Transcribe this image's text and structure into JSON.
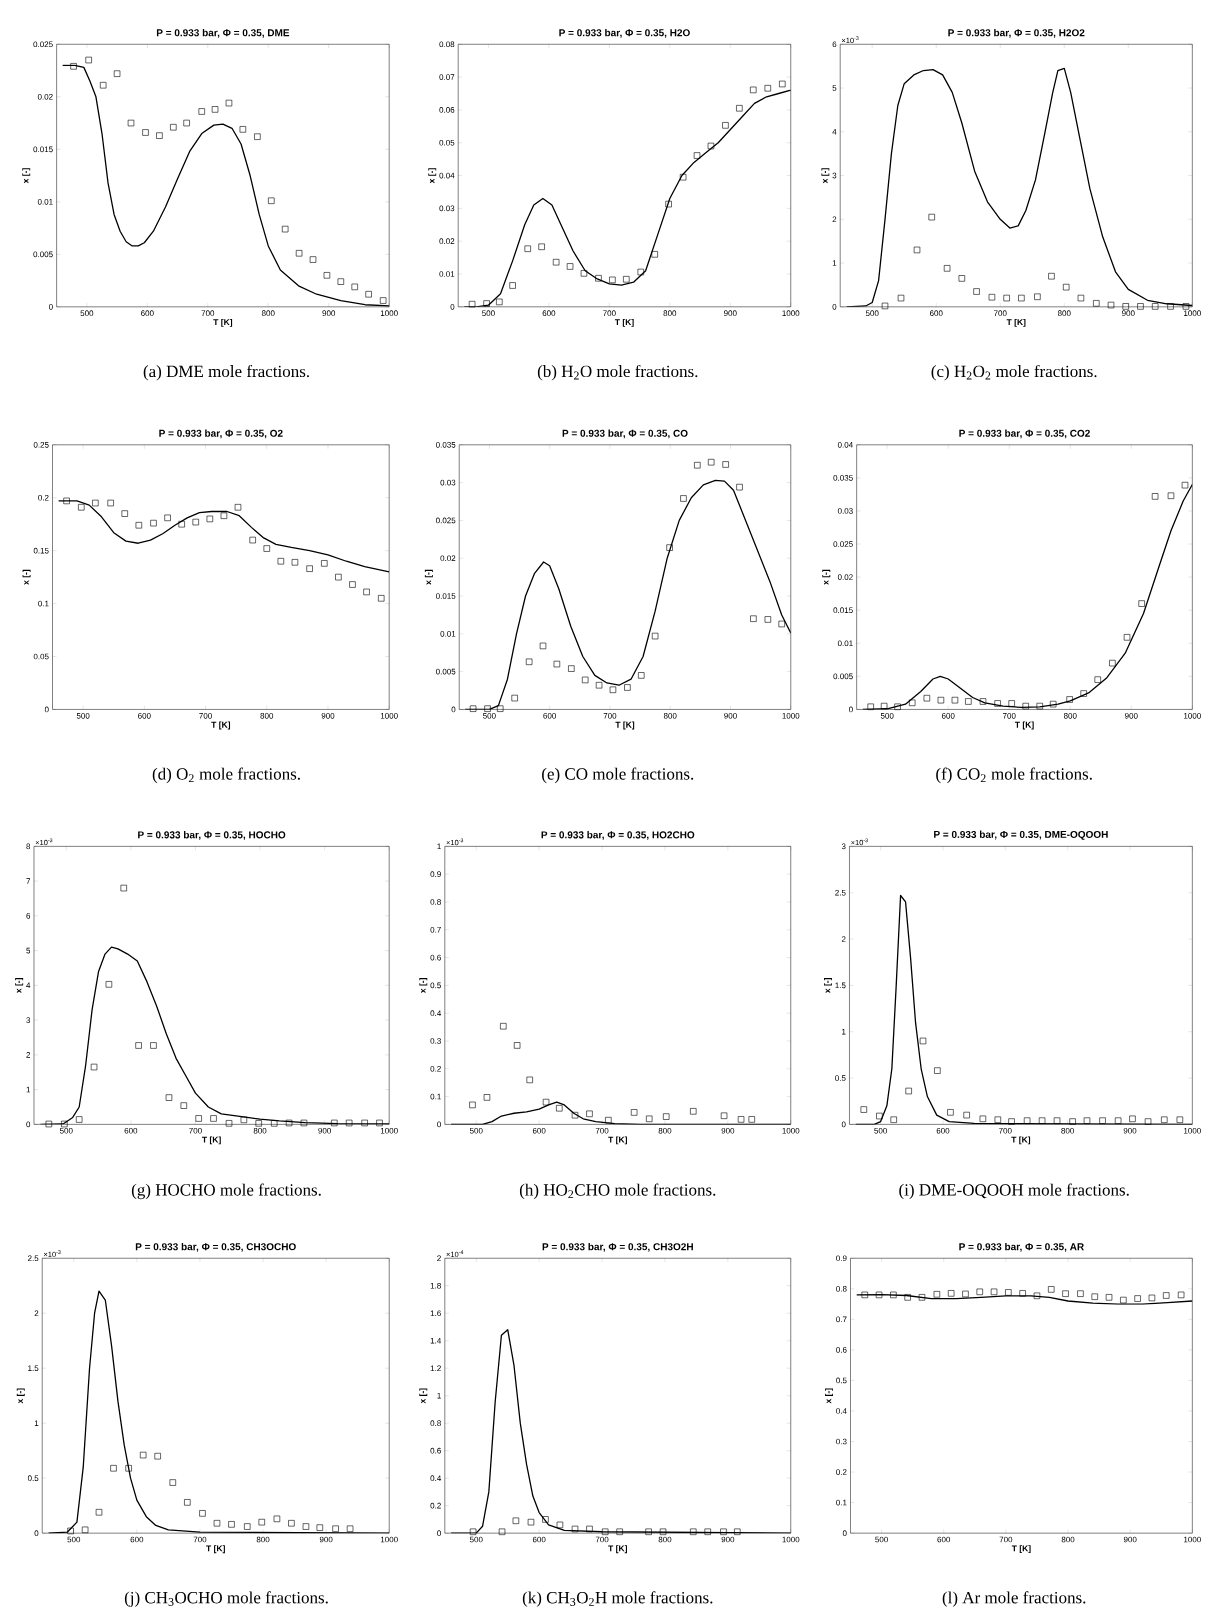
{
  "chart_data": [
    {
      "type": "line",
      "title": "P = 0.933 bar, Φ = 0.35, DME",
      "xlabel": "T [K]",
      "ylabel": "x [-]",
      "xlim": [
        450,
        1000
      ],
      "xticks": [
        500,
        600,
        700,
        800,
        900,
        1000
      ],
      "ylim": [
        0,
        0.025
      ],
      "yticks": [
        0,
        0.005,
        0.01,
        0.015,
        0.02,
        0.025
      ],
      "annotations": [
        "(a) DME mole fractions."
      ],
      "series": [
        {
          "color": "#000000",
          "x": [
            460,
            480,
            495,
            505,
            515,
            525,
            535,
            545,
            555,
            565,
            575,
            585,
            595,
            610,
            630,
            650,
            670,
            690,
            710,
            725,
            740,
            755,
            770,
            785,
            800,
            820,
            850,
            880,
            920,
            960,
            1000
          ],
          "values": [
            0.023,
            0.023,
            0.0228,
            0.0215,
            0.02,
            0.0165,
            0.0118,
            0.0088,
            0.0072,
            0.0062,
            0.0058,
            0.0058,
            0.0061,
            0.0072,
            0.0095,
            0.0122,
            0.0148,
            0.0165,
            0.0173,
            0.0174,
            0.017,
            0.0155,
            0.0125,
            0.0088,
            0.0058,
            0.0035,
            0.002,
            0.0012,
            0.0006,
            0.0002,
            0.0001
          ]
        },
        {
          "type": "scatter",
          "marker": "square",
          "color": "#000000",
          "x": [
            478,
            503,
            527,
            550,
            573,
            597,
            620,
            643,
            665,
            690,
            712,
            735,
            758,
            782,
            805,
            828,
            851,
            874,
            897,
            920,
            943,
            966,
            990
          ],
          "values": [
            0.0229,
            0.0235,
            0.0211,
            0.0222,
            0.0175,
            0.0166,
            0.0163,
            0.0171,
            0.0175,
            0.0186,
            0.0188,
            0.0194,
            0.0169,
            0.0162,
            0.0101,
            0.0074,
            0.0051,
            0.0045,
            0.003,
            0.0024,
            0.0019,
            0.0012,
            0.0006
          ]
        }
      ]
    },
    {
      "type": "line",
      "title": "P = 0.933 bar, Φ = 0.35, H2O",
      "xlabel": "T [K]",
      "ylabel": "x [-]",
      "xlim": [
        450,
        1000
      ],
      "xticks": [
        500,
        600,
        700,
        800,
        900,
        1000
      ],
      "ylim": [
        0,
        0.08
      ],
      "yticks": [
        0,
        0.01,
        0.02,
        0.03,
        0.04,
        0.05,
        0.06,
        0.07,
        0.08
      ],
      "annotations": [
        "(b) H$_{2}$O mole fractions."
      ],
      "series": [
        {
          "color": "#000000",
          "x": [
            460,
            480,
            500,
            520,
            540,
            560,
            575,
            590,
            605,
            620,
            640,
            660,
            680,
            700,
            720,
            740,
            760,
            780,
            800,
            820,
            840,
            860,
            880,
            900,
            920,
            940,
            960,
            980,
            1000
          ],
          "values": [
            0,
            0,
            0.0005,
            0.004,
            0.014,
            0.025,
            0.031,
            0.033,
            0.031,
            0.025,
            0.017,
            0.011,
            0.0085,
            0.007,
            0.0066,
            0.0075,
            0.011,
            0.022,
            0.033,
            0.04,
            0.044,
            0.047,
            0.05,
            0.054,
            0.058,
            0.062,
            0.064,
            0.065,
            0.066
          ]
        },
        {
          "type": "scatter",
          "marker": "square",
          "color": "#000000",
          "x": [
            473,
            497,
            518,
            540,
            565,
            588,
            612,
            635,
            658,
            682,
            705,
            728,
            752,
            775,
            798,
            822,
            845,
            868,
            892,
            915,
            938,
            962,
            986
          ],
          "values": [
            0.0008,
            0.001,
            0.0015,
            0.0065,
            0.0177,
            0.0183,
            0.0136,
            0.0123,
            0.0102,
            0.0087,
            0.0082,
            0.0084,
            0.0106,
            0.016,
            0.0313,
            0.0395,
            0.0461,
            0.049,
            0.0553,
            0.0605,
            0.0661,
            0.0666,
            0.0679
          ]
        }
      ]
    },
    {
      "type": "line",
      "title": "P = 0.933 bar, Φ = 0.35, H2O2",
      "xlabel": "T [K]",
      "ylabel": "x [-]",
      "xlim": [
        450,
        1000
      ],
      "xticks": [
        500,
        600,
        700,
        800,
        900,
        1000
      ],
      "ylim": [
        0,
        6
      ],
      "yticks": [
        0,
        1,
        2,
        3,
        4,
        5,
        6
      ],
      "annotations": [
        "(c) H$_{2}$O$_{2}$ mole fractions.",
        "×10$^{-3}$"
      ],
      "series": [
        {
          "color": "#000000",
          "x": [
            460,
            490,
            500,
            510,
            520,
            530,
            540,
            550,
            565,
            580,
            595,
            610,
            625,
            640,
            660,
            680,
            700,
            715,
            728,
            740,
            755,
            770,
            782,
            790,
            800,
            810,
            825,
            840,
            860,
            880,
            900,
            930,
            960,
            1000
          ],
          "values": [
            0,
            0.02,
            0.1,
            0.6,
            2,
            3.5,
            4.6,
            5.1,
            5.3,
            5.4,
            5.42,
            5.3,
            4.9,
            4.2,
            3.1,
            2.4,
            2,
            1.8,
            1.85,
            2.2,
            2.9,
            4,
            4.9,
            5.4,
            5.45,
            4.9,
            3.8,
            2.7,
            1.6,
            0.8,
            0.4,
            0.15,
            0.07,
            0.03
          ]
        },
        {
          "type": "scatter",
          "marker": "square",
          "color": "#000000",
          "x": [
            520,
            545,
            570,
            593,
            617,
            640,
            663,
            687,
            710,
            733,
            758,
            780,
            803,
            826,
            850,
            873,
            896,
            919,
            942,
            966,
            990
          ],
          "values": [
            0.02,
            0.2,
            1.3,
            2.05,
            0.88,
            0.65,
            0.35,
            0.22,
            0.2,
            0.2,
            0.23,
            0.7,
            0.45,
            0.2,
            0.08,
            0.04,
            0.01,
            0.01,
            0.01,
            0.01,
            0.01
          ]
        }
      ]
    },
    {
      "type": "line",
      "title": "P = 0.933 bar, Φ = 0.35, O2",
      "xlabel": "T [K]",
      "ylabel": "x [-]",
      "xlim": [
        450,
        1000
      ],
      "xticks": [
        500,
        600,
        700,
        800,
        900,
        1000
      ],
      "ylim": [
        0,
        0.25
      ],
      "yticks": [
        0,
        0.05,
        0.1,
        0.15,
        0.2,
        0.25
      ],
      "annotations": [
        "(d) O$_{2}$ mole fractions."
      ],
      "series": [
        {
          "color": "#000000",
          "x": [
            460,
            490,
            510,
            530,
            550,
            570,
            590,
            610,
            630,
            650,
            670,
            690,
            710,
            735,
            755,
            775,
            795,
            815,
            840,
            870,
            900,
            930,
            960,
            1000
          ],
          "values": [
            0.197,
            0.197,
            0.193,
            0.182,
            0.167,
            0.159,
            0.157,
            0.16,
            0.166,
            0.174,
            0.181,
            0.186,
            0.187,
            0.187,
            0.183,
            0.172,
            0.162,
            0.156,
            0.153,
            0.15,
            0.146,
            0.14,
            0.135,
            0.13
          ]
        },
        {
          "type": "scatter",
          "marker": "square",
          "color": "#000000",
          "x": [
            473,
            497,
            520,
            545,
            568,
            591,
            615,
            638,
            661,
            684,
            707,
            730,
            753,
            777,
            800,
            823,
            846,
            870,
            894,
            917,
            940,
            963,
            987
          ],
          "values": [
            0.197,
            0.191,
            0.195,
            0.195,
            0.185,
            0.174,
            0.176,
            0.181,
            0.175,
            0.177,
            0.18,
            0.183,
            0.191,
            0.16,
            0.152,
            0.14,
            0.139,
            0.133,
            0.138,
            0.125,
            0.118,
            0.111,
            0.105
          ]
        }
      ]
    },
    {
      "type": "line",
      "title": "P = 0.933 bar, Φ = 0.35, CO",
      "xlabel": "T [K]",
      "ylabel": "x [-]",
      "xlim": [
        450,
        1000
      ],
      "xticks": [
        500,
        600,
        700,
        800,
        900,
        1000
      ],
      "ylim": [
        0,
        0.035
      ],
      "yticks": [
        0,
        0.005,
        0.01,
        0.015,
        0.02,
        0.025,
        0.03,
        0.035
      ],
      "annotations": [
        "(e) CO mole fractions."
      ],
      "series": [
        {
          "color": "#000000",
          "x": [
            460,
            500,
            515,
            530,
            545,
            560,
            575,
            590,
            600,
            615,
            635,
            655,
            675,
            695,
            715,
            735,
            755,
            775,
            795,
            815,
            835,
            855,
            875,
            890,
            905,
            925,
            945,
            965,
            985,
            1000
          ],
          "values": [
            0,
            0,
            0.0005,
            0.004,
            0.01,
            0.015,
            0.018,
            0.0195,
            0.019,
            0.016,
            0.011,
            0.007,
            0.0045,
            0.0035,
            0.0032,
            0.004,
            0.007,
            0.013,
            0.02,
            0.025,
            0.028,
            0.0297,
            0.0303,
            0.0302,
            0.029,
            0.025,
            0.021,
            0.017,
            0.0125,
            0.0101
          ]
        },
        {
          "type": "scatter",
          "marker": "square",
          "color": "#000000",
          "x": [
            473,
            497,
            518,
            542,
            566,
            589,
            612,
            636,
            659,
            682,
            705,
            729,
            752,
            775,
            799,
            822,
            845,
            868,
            892,
            915,
            938,
            962,
            985
          ],
          "values": [
            0.0001,
            0.0001,
            0.0001,
            0.0015,
            0.0063,
            0.0084,
            0.006,
            0.0054,
            0.0039,
            0.0032,
            0.0026,
            0.0029,
            0.0045,
            0.0097,
            0.0214,
            0.0279,
            0.0323,
            0.0327,
            0.0324,
            0.0294,
            0.012,
            0.0119,
            0.0113
          ]
        }
      ]
    },
    {
      "type": "line",
      "title": "P = 0.933 bar, Φ = 0.35, CO2",
      "xlabel": "T [K]",
      "ylabel": "x [-]",
      "xlim": [
        450,
        1000
      ],
      "xticks": [
        500,
        600,
        700,
        800,
        900,
        1000
      ],
      "ylim": [
        0,
        0.04
      ],
      "yticks": [
        0,
        0.005,
        0.01,
        0.015,
        0.02,
        0.025,
        0.03,
        0.035,
        0.04
      ],
      "annotations": [
        "(f) CO$_{2}$ mole fractions."
      ],
      "series": [
        {
          "color": "#000000",
          "x": [
            460,
            500,
            530,
            555,
            575,
            587,
            600,
            620,
            640,
            660,
            690,
            720,
            750,
            780,
            800,
            830,
            860,
            890,
            920,
            945,
            965,
            985,
            1000
          ],
          "values": [
            0,
            0.0001,
            0.0008,
            0.0027,
            0.0046,
            0.005,
            0.0046,
            0.0032,
            0.0018,
            0.001,
            0.0005,
            0.0003,
            0.0004,
            0.0008,
            0.0013,
            0.0025,
            0.0048,
            0.0085,
            0.0145,
            0.0215,
            0.027,
            0.0315,
            0.034
          ]
        },
        {
          "type": "scatter",
          "marker": "square",
          "color": "#000000",
          "x": [
            473,
            495,
            517,
            541,
            565,
            588,
            611,
            633,
            657,
            681,
            704,
            727,
            750,
            772,
            799,
            822,
            845,
            869,
            893,
            917,
            939,
            965,
            988
          ],
          "values": [
            0.0004,
            0.0005,
            0.0004,
            0.001,
            0.0017,
            0.0014,
            0.0014,
            0.0012,
            0.0012,
            0.0009,
            0.0009,
            0.0005,
            0.0005,
            0.0008,
            0.0015,
            0.0024,
            0.0045,
            0.007,
            0.0109,
            0.016,
            0.0322,
            0.0323,
            0.0339
          ]
        }
      ]
    },
    {
      "type": "line",
      "title": "P = 0.933 bar, Φ = 0.35, HOCHO",
      "xlabel": "T [K]",
      "ylabel": "x [-]",
      "xlim": [
        450,
        1000
      ],
      "xticks": [
        500,
        600,
        700,
        800,
        900,
        1000
      ],
      "ylim": [
        0,
        8
      ],
      "yticks": [
        0,
        1,
        2,
        3,
        4,
        5,
        6,
        7,
        8
      ],
      "annotations": [
        "(g) HOCHO mole fractions.",
        "×10$^{-3}$"
      ],
      "series": [
        {
          "color": "#000000",
          "x": [
            460,
            495,
            510,
            520,
            530,
            540,
            550,
            560,
            570,
            580,
            595,
            610,
            625,
            640,
            655,
            670,
            685,
            700,
            720,
            740,
            760,
            780,
            800,
            830,
            870,
            920,
            1000
          ],
          "values": [
            0,
            0.01,
            0.2,
            0.5,
            1.7,
            3.3,
            4.4,
            4.9,
            5.1,
            5.05,
            4.9,
            4.7,
            4.1,
            3.4,
            2.6,
            1.9,
            1.4,
            0.9,
            0.5,
            0.3,
            0.25,
            0.2,
            0.15,
            0.1,
            0.05,
            0.02,
            0.01
          ]
        },
        {
          "type": "scatter",
          "marker": "square",
          "color": "#000000",
          "x": [
            473,
            497,
            520,
            543,
            566,
            589,
            612,
            635,
            659,
            682,
            705,
            728,
            752,
            775,
            798,
            822,
            845,
            868,
            915,
            938,
            962,
            985
          ],
          "values": [
            0.01,
            0.01,
            0.14,
            1.65,
            4.03,
            6.8,
            2.27,
            2.27,
            0.77,
            0.54,
            0.17,
            0.17,
            0.03,
            0.13,
            0.03,
            0.03,
            0.04,
            0.04,
            0.04,
            0.04,
            0.04,
            0.04
          ]
        }
      ]
    },
    {
      "type": "line",
      "title": "P = 0.933 bar, Φ = 0.35, HO2CHO",
      "xlabel": "T [K]",
      "ylabel": "x [-]",
      "xlim": [
        450,
        1000
      ],
      "xticks": [
        500,
        600,
        700,
        800,
        900,
        1000
      ],
      "ylim": [
        0,
        1
      ],
      "yticks": [
        0,
        0.1,
        0.2,
        0.3,
        0.4,
        0.5,
        0.6,
        0.7,
        0.8,
        0.9,
        1
      ],
      "annotations": [
        "(h) HO$_{2}$CHO mole fractions.",
        "×10$^{-3}$"
      ],
      "series": [
        {
          "color": "#000000",
          "x": [
            460,
            510,
            525,
            540,
            560,
            580,
            600,
            615,
            628,
            640,
            655,
            670,
            690,
            720,
            760,
            1000
          ],
          "values": [
            0,
            0,
            0.01,
            0.03,
            0.04,
            0.045,
            0.055,
            0.07,
            0.08,
            0.07,
            0.04,
            0.02,
            0.01,
            0.003,
            0,
            0
          ]
        },
        {
          "type": "scatter",
          "marker": "square",
          "color": "#000000",
          "x": [
            494,
            517,
            543,
            565,
            585,
            611,
            632,
            657,
            680,
            710,
            751,
            775,
            802,
            845,
            894,
            921,
            938
          ],
          "values": [
            0.07,
            0.097,
            0.353,
            0.284,
            0.16,
            0.08,
            0.058,
            0.033,
            0.038,
            0.015,
            0.043,
            0.02,
            0.028,
            0.047,
            0.031,
            0.018,
            0.018
          ]
        }
      ]
    },
    {
      "type": "line",
      "title": "P = 0.933 bar, Φ = 0.35, DME-OQOOH",
      "xlabel": "T [K]",
      "ylabel": "x [-]",
      "xlim": [
        450,
        1000
      ],
      "xticks": [
        500,
        600,
        700,
        800,
        900,
        1000
      ],
      "ylim": [
        0,
        3
      ],
      "yticks": [
        0,
        0.5,
        1,
        1.5,
        2,
        2.5,
        3
      ],
      "annotations": [
        "(i) DME-OQOOH mole fractions.",
        "×10$^{-3}$"
      ],
      "series": [
        {
          "color": "#000000",
          "x": [
            460,
            490,
            500,
            510,
            518,
            525,
            532,
            540,
            548,
            556,
            565,
            575,
            590,
            610,
            650,
            1000
          ],
          "values": [
            0,
            0,
            0.03,
            0.2,
            0.6,
            1.5,
            2.47,
            2.4,
            1.8,
            1.1,
            0.6,
            0.3,
            0.1,
            0.03,
            0.01,
            0
          ]
        },
        {
          "type": "scatter",
          "marker": "square",
          "color": "#000000",
          "x": [
            473,
            498,
            521,
            545,
            568,
            591,
            612,
            638,
            664,
            688,
            710,
            735,
            759,
            783,
            808,
            831,
            856,
            881,
            904,
            929,
            955,
            980
          ],
          "values": [
            0.16,
            0.09,
            0.05,
            0.36,
            0.9,
            0.58,
            0.13,
            0.1,
            0.06,
            0.05,
            0.03,
            0.04,
            0.04,
            0.04,
            0.03,
            0.04,
            0.04,
            0.04,
            0.06,
            0.03,
            0.05,
            0.05
          ]
        }
      ]
    },
    {
      "type": "line",
      "title": "P = 0.933 bar, Φ = 0.35, CH3OCHO",
      "xlabel": "T [K]",
      "ylabel": "x [-]",
      "xlim": [
        450,
        1000
      ],
      "xticks": [
        500,
        600,
        700,
        800,
        900,
        1000
      ],
      "ylim": [
        0,
        2.5
      ],
      "yticks": [
        0,
        0.5,
        1,
        1.5,
        2,
        2.5
      ],
      "annotations": [
        "(j) CH$_{3}$OCHO mole fractions.",
        "×10$^{-3}$"
      ],
      "series": [
        {
          "color": "#000000",
          "x": [
            460,
            490,
            505,
            515,
            525,
            533,
            540,
            550,
            560,
            570,
            580,
            590,
            600,
            615,
            630,
            650,
            700,
            1000
          ],
          "values": [
            0,
            0.01,
            0.1,
            0.6,
            1.5,
            2,
            2.2,
            2.12,
            1.7,
            1.2,
            0.8,
            0.5,
            0.3,
            0.15,
            0.07,
            0.03,
            0.01,
            0
          ]
        },
        {
          "type": "scatter",
          "marker": "square",
          "color": "#000000",
          "x": [
            495,
            518,
            540,
            563,
            587,
            610,
            633,
            657,
            680,
            704,
            727,
            750,
            775,
            798,
            822,
            845,
            868,
            890,
            915,
            938
          ],
          "values": [
            0.02,
            0.03,
            0.19,
            0.59,
            0.59,
            0.71,
            0.7,
            0.46,
            0.28,
            0.18,
            0.09,
            0.08,
            0.06,
            0.1,
            0.13,
            0.09,
            0.06,
            0.05,
            0.04,
            0.04
          ]
        }
      ]
    },
    {
      "type": "line",
      "title": "P = 0.933 bar, Φ = 0.35, CH3O2H",
      "xlabel": "T [K]",
      "ylabel": "x [-]",
      "xlim": [
        450,
        1000
      ],
      "xticks": [
        500,
        600,
        700,
        800,
        900,
        1000
      ],
      "ylim": [
        0,
        2
      ],
      "yticks": [
        0,
        0.2,
        0.4,
        0.6,
        0.8,
        1,
        1.2,
        1.4,
        1.6,
        1.8,
        2
      ],
      "annotations": [
        "(k) CH$_{3}$O$_{2}$H mole fractions.",
        "×10$^{-4}$"
      ],
      "series": [
        {
          "color": "#000000",
          "x": [
            460,
            500,
            510,
            520,
            530,
            540,
            550,
            560,
            570,
            580,
            590,
            600,
            615,
            640,
            700,
            1000
          ],
          "values": [
            0,
            0,
            0.05,
            0.3,
            0.95,
            1.44,
            1.48,
            1.22,
            0.8,
            0.5,
            0.27,
            0.15,
            0.06,
            0.02,
            0.01,
            0
          ]
        },
        {
          "type": "scatter",
          "marker": "square",
          "color": "#000000",
          "x": [
            495,
            541,
            563,
            587,
            610,
            633,
            657,
            680,
            705,
            728,
            774,
            797,
            845,
            868,
            893,
            915
          ],
          "values": [
            0.01,
            0.01,
            0.09,
            0.08,
            0.1,
            0.06,
            0.03,
            0.03,
            0.01,
            0.01,
            0.01,
            0.01,
            0.01,
            0.01,
            0.01,
            0.01
          ]
        }
      ]
    },
    {
      "type": "line",
      "title": "P = 0.933 bar, Φ = 0.35, AR",
      "xlabel": "T [K]",
      "ylabel": "x [-]",
      "xlim": [
        450,
        1000
      ],
      "xticks": [
        500,
        600,
        700,
        800,
        900,
        1000
      ],
      "ylim": [
        0,
        0.9
      ],
      "yticks": [
        0,
        0.1,
        0.2,
        0.3,
        0.4,
        0.5,
        0.6,
        0.7,
        0.8,
        0.9
      ],
      "annotations": [
        "(l) Ar mole fractions."
      ],
      "series": [
        {
          "color": "#000000",
          "x": [
            460,
            500,
            540,
            580,
            620,
            660,
            700,
            740,
            770,
            800,
            840,
            880,
            920,
            960,
            1000
          ],
          "values": [
            0.78,
            0.781,
            0.778,
            0.768,
            0.768,
            0.772,
            0.777,
            0.777,
            0.772,
            0.76,
            0.753,
            0.75,
            0.75,
            0.755,
            0.76
          ]
        },
        {
          "type": "scatter",
          "marker": "square",
          "color": "#000000",
          "x": [
            473,
            496,
            519,
            542,
            565,
            589,
            612,
            635,
            658,
            681,
            704,
            727,
            750,
            773,
            796,
            820,
            843,
            866,
            889,
            912,
            935,
            958,
            982
          ],
          "values": [
            0.78,
            0.78,
            0.78,
            0.772,
            0.772,
            0.782,
            0.785,
            0.783,
            0.79,
            0.79,
            0.788,
            0.785,
            0.777,
            0.798,
            0.784,
            0.784,
            0.774,
            0.772,
            0.763,
            0.768,
            0.77,
            0.778,
            0.78
          ]
        }
      ]
    }
  ]
}
